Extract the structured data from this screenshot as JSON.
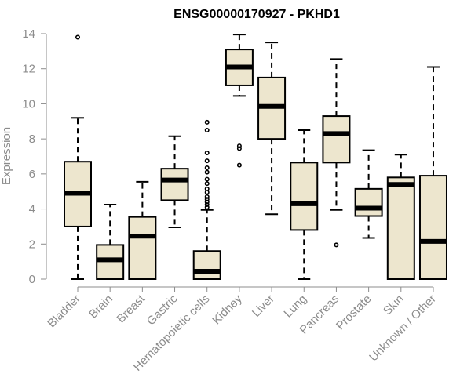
{
  "chart_data": {
    "type": "boxplot",
    "title": "ENSG00000170927 - PKHD1",
    "xlabel": "",
    "ylabel": "Expression",
    "ylim": [
      0,
      14
    ],
    "yticks": [
      0,
      2,
      4,
      6,
      8,
      10,
      12,
      14
    ],
    "box_fill": "#ede6ce",
    "outline_color": "#000000",
    "axis_color": "#8c8c8c",
    "categories": [
      "Bladder",
      "Brain",
      "Breast",
      "Gastric",
      "Hematopoietic cells",
      "Kidney",
      "Liver",
      "Lung",
      "Pancreas",
      "Prostate",
      "Skin",
      "Unknown / Other"
    ],
    "boxes": [
      {
        "min": 0,
        "q1": 3.0,
        "median": 4.9,
        "q3": 6.7,
        "max": 9.2,
        "outliers": [
          13.8
        ]
      },
      {
        "min": 0,
        "q1": 0,
        "median": 1.1,
        "q3": 1.95,
        "max": 4.25,
        "outliers": []
      },
      {
        "min": 0,
        "q1": 0,
        "median": 2.45,
        "q3": 3.55,
        "max": 5.55,
        "outliers": []
      },
      {
        "min": 2.95,
        "q1": 4.5,
        "median": 5.65,
        "q3": 6.3,
        "max": 8.15,
        "outliers": []
      },
      {
        "min": 0,
        "q1": 0,
        "median": 0.45,
        "q3": 1.6,
        "max": 3.95,
        "outliers": [
          4.1,
          4.25,
          4.4,
          4.55,
          4.7,
          4.95,
          5.15,
          5.45,
          5.7,
          6.1,
          6.35,
          6.75,
          7.2,
          8.5,
          8.95
        ]
      },
      {
        "min": 10.45,
        "q1": 11.05,
        "median": 12.1,
        "q3": 13.1,
        "max": 13.95,
        "outliers": [
          6.5,
          7.45,
          7.6
        ]
      },
      {
        "min": 3.7,
        "q1": 8.0,
        "median": 9.85,
        "q3": 11.5,
        "max": 13.5,
        "outliers": []
      },
      {
        "min": 0,
        "q1": 2.8,
        "median": 4.3,
        "q3": 6.65,
        "max": 8.5,
        "outliers": []
      },
      {
        "min": 3.95,
        "q1": 6.65,
        "median": 8.3,
        "q3": 9.3,
        "max": 12.55,
        "outliers": [
          1.95
        ]
      },
      {
        "min": 2.35,
        "q1": 3.6,
        "median": 4.05,
        "q3": 5.15,
        "max": 7.35,
        "outliers": []
      },
      {
        "min": 0,
        "q1": 0,
        "median": 5.4,
        "q3": 5.8,
        "max": 7.1,
        "outliers": []
      },
      {
        "min": 0,
        "q1": 0,
        "median": 2.15,
        "q3": 5.9,
        "max": 12.1,
        "outliers": []
      }
    ]
  }
}
